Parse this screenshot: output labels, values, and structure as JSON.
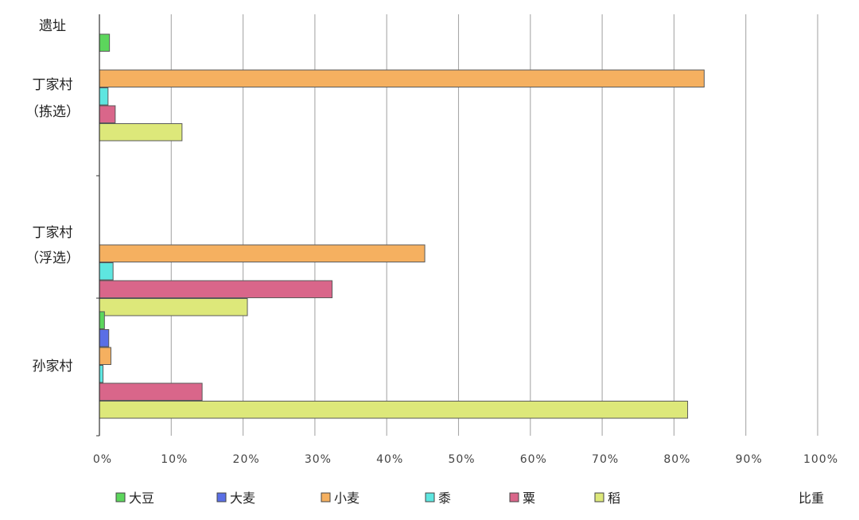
{
  "chart_data": {
    "type": "bar",
    "orientation": "horizontal",
    "ylabel": "遗址",
    "xlabel": "比重",
    "xlim": [
      0,
      100
    ],
    "xticks": [
      "0%",
      "10%",
      "20%",
      "30%",
      "40%",
      "50%",
      "60%",
      "70%",
      "80%",
      "90%",
      "100%"
    ],
    "grid": true,
    "legend_position": "bottom",
    "categories": [
      [
        "丁家村",
        "（拣选）"
      ],
      [
        "丁家村",
        "（浮选）"
      ],
      [
        "孙家村"
      ]
    ],
    "series": [
      {
        "name": "大豆",
        "color": "#5cd65c",
        "values": [
          1.4,
          0,
          0.7
        ]
      },
      {
        "name": "大麦",
        "color": "#5a6fe6",
        "values": [
          0,
          0,
          1.3
        ]
      },
      {
        "name": "小麦",
        "color": "#f5b060",
        "values": [
          84.2,
          45.3,
          1.6
        ]
      },
      {
        "name": "黍",
        "color": "#5ee6e0",
        "values": [
          1.2,
          1.9,
          0.5
        ]
      },
      {
        "name": "粟",
        "color": "#d9668a",
        "values": [
          2.2,
          32.4,
          14.3
        ]
      },
      {
        "name": "稻",
        "color": "#dde87a",
        "values": [
          11.5,
          20.6,
          81.9
        ]
      }
    ]
  }
}
